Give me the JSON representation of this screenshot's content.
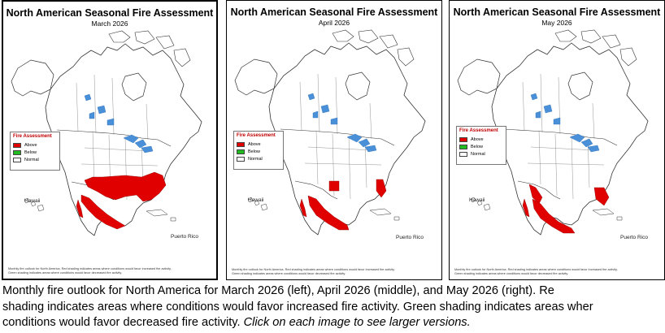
{
  "panels": [
    {
      "title": "North American Seasonal Fire Assessment",
      "month": "March 2026",
      "legend": {
        "title": "Fire Assessment",
        "items": [
          {
            "label": "Above",
            "color": "#e00000"
          },
          {
            "label": "Below",
            "color": "#22bb22"
          },
          {
            "label": "Normal",
            "color": "#ffffff"
          }
        ]
      },
      "label_hawaii": "Hawaii",
      "label_pr": "Puerto Rico",
      "footnote_line1": "Monthly fire outlook for North America. Red shading indicates areas where conditions would favor increased fire activity.",
      "footnote_line2": "Green shading indicates areas where conditions would favor decreased fire activity."
    },
    {
      "title": "North American Seasonal Fire Assessment",
      "month": "April 2026",
      "legend": {
        "title": "Fire Assessment",
        "items": [
          {
            "label": "Above",
            "color": "#e00000"
          },
          {
            "label": "Below",
            "color": "#22bb22"
          },
          {
            "label": "Normal",
            "color": "#ffffff"
          }
        ]
      },
      "label_hawaii": "Hawaii",
      "label_pr": "Puerto Rico",
      "footnote_line1": "Monthly fire outlook for North America. Red shading indicates areas where conditions would favor increased fire activity.",
      "footnote_line2": "Green shading indicates areas where conditions would favor decreased fire activity."
    },
    {
      "title": "North American Seasonal Fire Assessment",
      "month": "May 2026",
      "legend": {
        "title": "Fire Assessment",
        "items": [
          {
            "label": "Above",
            "color": "#e00000"
          },
          {
            "label": "Below",
            "color": "#22bb22"
          },
          {
            "label": "Normal",
            "color": "#ffffff"
          }
        ]
      },
      "label_hawaii": "Hawaii",
      "label_pr": "Puerto Rico",
      "footnote_line1": "Monthly fire outlook for North America. Red shading indicates areas where conditions would favor increased fire activity.",
      "footnote_line2": "Green shading indicates areas where conditions would favor decreased fire activity."
    }
  ],
  "caption": {
    "line1": "Monthly fire outlook for North America for March 2026 (left), April 2026 (middle), and May 2026 (right). Re",
    "line2": "shading indicates areas where conditions would favor increased fire activity. Green shading indicates areas wher",
    "line3_plain": "conditions would favor decreased fire activity. ",
    "line3_italic": "Click on each image to see larger versions."
  },
  "colors": {
    "above": "#e00000",
    "water": "#4a90d9",
    "land": "#ffffff",
    "border": "#333333"
  }
}
